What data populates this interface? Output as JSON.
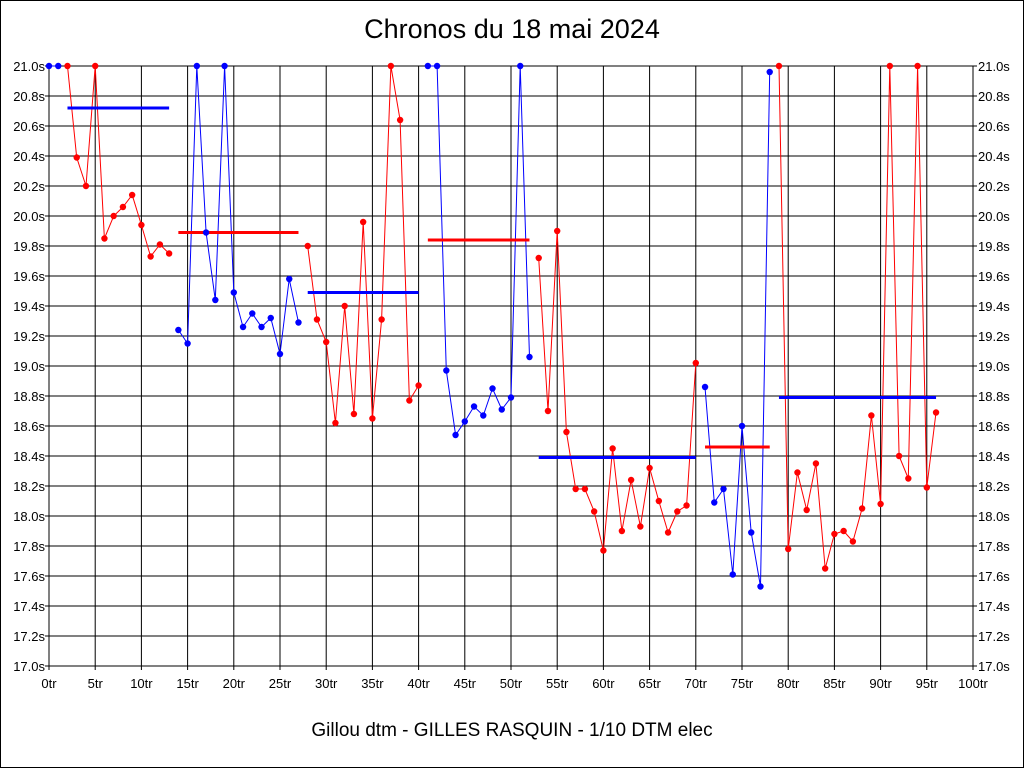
{
  "chart_data": {
    "type": "line",
    "title": "Chronos du 18 mai 2024",
    "xlabel": "Gillou dtm - GILLES RASQUIN - 1/10 DTM elec",
    "ylabel": "",
    "x_unit": "tr",
    "y_unit": "s",
    "xlim": [
      0,
      100
    ],
    "ylim": [
      17.0,
      21.0
    ],
    "x_ticks": [
      0,
      5,
      10,
      15,
      20,
      25,
      30,
      35,
      40,
      45,
      50,
      55,
      60,
      65,
      70,
      75,
      80,
      85,
      90,
      95,
      100
    ],
    "x_tick_labels": [
      "0tr",
      "5tr",
      "10tr",
      "15tr",
      "20tr",
      "25tr",
      "30tr",
      "35tr",
      "40tr",
      "45tr",
      "50tr",
      "55tr",
      "60tr",
      "65tr",
      "70tr",
      "75tr",
      "80tr",
      "85tr",
      "90tr",
      "95tr",
      "100tr"
    ],
    "y_ticks": [
      17.0,
      17.2,
      17.4,
      17.6,
      17.8,
      18.0,
      18.2,
      18.4,
      18.6,
      18.8,
      19.0,
      19.2,
      19.4,
      19.6,
      19.8,
      20.0,
      20.2,
      20.4,
      20.6,
      20.8,
      21.0
    ],
    "y_tick_labels": [
      "17.0s",
      "17.2s",
      "17.4s",
      "17.6s",
      "17.8s",
      "18.0s",
      "18.2s",
      "18.4s",
      "18.6s",
      "18.8s",
      "19.0s",
      "19.2s",
      "19.4s",
      "19.6s",
      "19.8s",
      "20.0s",
      "20.2s",
      "20.4s",
      "20.6s",
      "20.8s",
      "21.0s"
    ],
    "y_axis_both_sides": true,
    "grid": true,
    "series": [
      {
        "color": "#0000ff",
        "points": [
          [
            0,
            21.0
          ],
          [
            1,
            21.0
          ]
        ],
        "average": {
          "x": [
            2,
            13
          ],
          "y": 20.72
        }
      },
      {
        "color": "#ff0000",
        "points": [
          [
            2,
            21.0
          ],
          [
            3,
            20.39
          ],
          [
            4,
            20.2
          ],
          [
            5,
            21.0
          ],
          [
            6,
            19.85
          ],
          [
            7,
            20.0
          ],
          [
            8,
            20.06
          ],
          [
            9,
            20.14
          ],
          [
            10,
            19.94
          ],
          [
            11,
            19.73
          ],
          [
            12,
            19.81
          ],
          [
            13,
            19.75
          ]
        ],
        "average": {
          "x": [
            14,
            27
          ],
          "y": 19.89
        }
      },
      {
        "color": "#0000ff",
        "points": [
          [
            14,
            19.24
          ],
          [
            15,
            19.15
          ],
          [
            16,
            21.0
          ],
          [
            17,
            19.89
          ],
          [
            18,
            19.44
          ],
          [
            19,
            21.0
          ],
          [
            20,
            19.49
          ],
          [
            21,
            19.26
          ],
          [
            22,
            19.35
          ],
          [
            23,
            19.26
          ],
          [
            24,
            19.32
          ],
          [
            25,
            19.08
          ],
          [
            26,
            19.58
          ],
          [
            27,
            19.29
          ]
        ],
        "average": {
          "x": [
            28,
            40
          ],
          "y": 19.49
        }
      },
      {
        "color": "#ff0000",
        "points": [
          [
            28,
            19.8
          ],
          [
            29,
            19.31
          ],
          [
            30,
            19.16
          ],
          [
            31,
            18.62
          ],
          [
            32,
            19.4
          ],
          [
            33,
            18.68
          ],
          [
            34,
            19.96
          ],
          [
            35,
            18.65
          ],
          [
            36,
            19.31
          ],
          [
            37,
            21.0
          ],
          [
            38,
            20.64
          ],
          [
            39,
            18.77
          ],
          [
            40,
            18.87
          ]
        ],
        "average": {
          "x": [
            41,
            52
          ],
          "y": 19.84
        }
      },
      {
        "color": "#0000ff",
        "points": [
          [
            41,
            21.0
          ],
          [
            42,
            21.0
          ],
          [
            43,
            18.97
          ],
          [
            44,
            18.54
          ],
          [
            45,
            18.63
          ],
          [
            46,
            18.73
          ],
          [
            47,
            18.67
          ],
          [
            48,
            18.85
          ],
          [
            49,
            18.71
          ],
          [
            50,
            18.79
          ],
          [
            51,
            21.0
          ],
          [
            52,
            19.06
          ]
        ],
        "average": {
          "x": [
            53,
            70
          ],
          "y": 18.39
        }
      },
      {
        "color": "#ff0000",
        "points": [
          [
            53,
            19.72
          ],
          [
            54,
            18.7
          ],
          [
            55,
            19.9
          ],
          [
            56,
            18.56
          ],
          [
            57,
            18.18
          ],
          [
            58,
            18.18
          ],
          [
            59,
            18.03
          ],
          [
            60,
            17.77
          ],
          [
            61,
            18.45
          ],
          [
            62,
            17.9
          ],
          [
            63,
            18.24
          ],
          [
            64,
            17.93
          ],
          [
            65,
            18.32
          ],
          [
            66,
            18.1
          ],
          [
            67,
            17.89
          ],
          [
            68,
            18.03
          ],
          [
            69,
            18.07
          ],
          [
            70,
            19.02
          ]
        ],
        "average": {
          "x": [
            71,
            78
          ],
          "y": 18.46
        }
      },
      {
        "color": "#0000ff",
        "points": [
          [
            71,
            18.86
          ],
          [
            72,
            18.09
          ],
          [
            73,
            18.18
          ],
          [
            74,
            17.61
          ],
          [
            75,
            18.6
          ],
          [
            76,
            17.89
          ],
          [
            77,
            17.53
          ],
          [
            78,
            20.96
          ]
        ],
        "average": {
          "x": [
            79,
            96
          ],
          "y": 18.79
        }
      },
      {
        "color": "#ff0000",
        "points": [
          [
            79,
            21.0
          ],
          [
            80,
            17.78
          ],
          [
            81,
            18.29
          ],
          [
            82,
            18.04
          ],
          [
            83,
            18.35
          ],
          [
            84,
            17.65
          ],
          [
            85,
            17.88
          ],
          [
            86,
            17.9
          ],
          [
            87,
            17.83
          ],
          [
            88,
            18.05
          ],
          [
            89,
            18.67
          ],
          [
            90,
            18.08
          ],
          [
            91,
            21.0
          ],
          [
            92,
            18.4
          ],
          [
            93,
            18.25
          ],
          [
            94,
            21.0
          ],
          [
            95,
            18.19
          ],
          [
            96,
            18.69
          ]
        ]
      }
    ]
  }
}
